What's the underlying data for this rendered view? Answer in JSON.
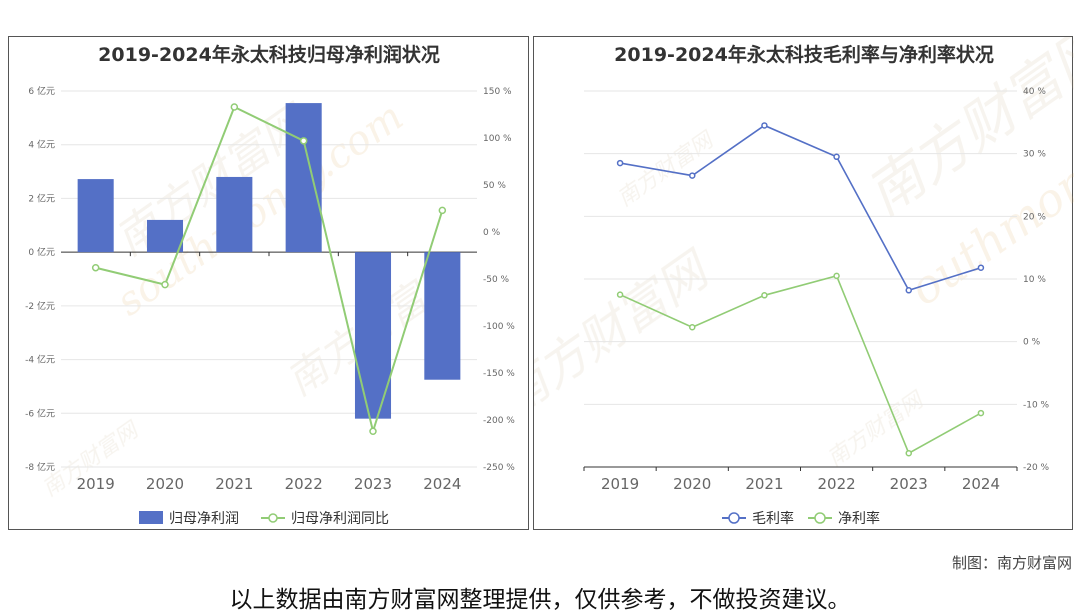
{
  "credit": "制图：南方财富网",
  "footer": "以上数据由南方财富网整理提供，仅供参考，不做投资建议。",
  "watermark": {
    "cn": "南方财富网",
    "en": "southmoney.com",
    "en2": "outhmoney.com"
  },
  "chart_data": [
    {
      "type": "bar",
      "title": "2019-2024年永太科技归母净利润状况",
      "categories": [
        "2019",
        "2020",
        "2021",
        "2022",
        "2023",
        "2024"
      ],
      "series": [
        {
          "name": "归母净利润",
          "type": "bar",
          "axis": "left",
          "color": "#5470c6",
          "values": [
            2.72,
            1.2,
            2.8,
            5.55,
            -6.2,
            -4.75
          ]
        },
        {
          "name": "归母净利润同比",
          "type": "line",
          "axis": "right",
          "color": "#91cc75",
          "values": [
            -38,
            -56,
            133,
            97,
            -212,
            23
          ]
        }
      ],
      "left_axis": {
        "min": -8,
        "max": 6,
        "ticks": [
          6,
          4,
          2,
          0,
          -2,
          -4,
          -6,
          -8
        ],
        "tick_labels": [
          "6 亿元",
          "4 亿元",
          "2 亿元",
          "0 亿元",
          "-2 亿元",
          "-4 亿元",
          "-6 亿元",
          "-8 亿元"
        ]
      },
      "right_axis": {
        "min": -250,
        "max": 150,
        "ticks": [
          150,
          100,
          50,
          0,
          -50,
          -100,
          -150,
          -200,
          -250
        ],
        "tick_labels": [
          "150 %",
          "100 %",
          "50 %",
          "0 %",
          "-50 %",
          "-100 %",
          "-150 %",
          "-200 %",
          "-250 %"
        ]
      },
      "grid": true,
      "legend": "bottom"
    },
    {
      "type": "line",
      "title": "2019-2024年永太科技毛利率与净利率状况",
      "categories": [
        "2019",
        "2020",
        "2021",
        "2022",
        "2023",
        "2024"
      ],
      "series": [
        {
          "name": "毛利率",
          "color": "#5470c6",
          "values": [
            28.5,
            26.5,
            34.5,
            29.5,
            8.2,
            11.8
          ]
        },
        {
          "name": "净利率",
          "color": "#91cc75",
          "values": [
            7.5,
            2.3,
            7.4,
            10.5,
            -17.8,
            -11.4
          ]
        }
      ],
      "right_axis": {
        "min": -20,
        "max": 40,
        "ticks": [
          40,
          30,
          20,
          10,
          0,
          -10,
          -20
        ],
        "tick_labels": [
          "40 %",
          "30 %",
          "20 %",
          "10 %",
          "0 %",
          "-10 %",
          "-20 %"
        ]
      },
      "grid": true,
      "legend": "bottom"
    }
  ]
}
